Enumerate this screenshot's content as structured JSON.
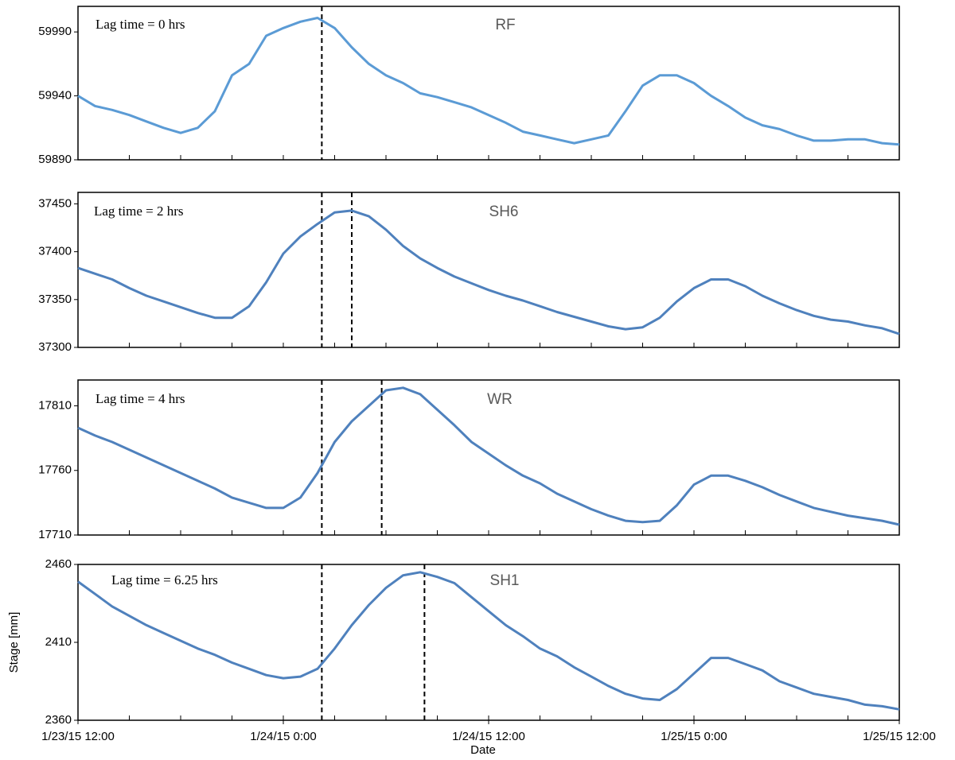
{
  "chart_data": [
    {
      "type": "line",
      "title": "RF",
      "annotation": "Lag time = 0 hrs",
      "color": "#5b9bd5",
      "ylim": [
        59890,
        60010
      ],
      "yticks": [
        59890,
        59940,
        59990
      ],
      "xlim": [
        "1/23/15 12:00",
        "1/25/15 12:00"
      ],
      "vlines": [
        "1/24/15 2:15"
      ],
      "x": [
        "1/23/15 12:00",
        "1/23/15 13:00",
        "1/23/15 14:00",
        "1/23/15 15:00",
        "1/23/15 16:00",
        "1/23/15 17:00",
        "1/23/15 18:00",
        "1/23/15 19:00",
        "1/23/15 20:00",
        "1/23/15 21:00",
        "1/23/15 22:00",
        "1/23/15 23:00",
        "1/24/15 0:00",
        "1/24/15 1:00",
        "1/24/15 2:00",
        "1/24/15 3:00",
        "1/24/15 4:00",
        "1/24/15 5:00",
        "1/24/15 6:00",
        "1/24/15 7:00",
        "1/24/15 8:00",
        "1/24/15 9:00",
        "1/24/15 10:00",
        "1/24/15 11:00",
        "1/24/15 12:00",
        "1/24/15 13:00",
        "1/24/15 14:00",
        "1/24/15 15:00",
        "1/24/15 16:00",
        "1/24/15 17:00",
        "1/24/15 18:00",
        "1/24/15 19:00",
        "1/24/15 20:00",
        "1/24/15 21:00",
        "1/24/15 22:00",
        "1/24/15 23:00",
        "1/25/15 0:00",
        "1/25/15 1:00",
        "1/25/15 2:00",
        "1/25/15 3:00",
        "1/25/15 4:00",
        "1/25/15 5:00",
        "1/25/15 6:00",
        "1/25/15 7:00",
        "1/25/15 8:00",
        "1/25/15 9:00",
        "1/25/15 10:00",
        "1/25/15 11:00",
        "1/25/15 12:00"
      ],
      "values": [
        59940,
        59932,
        59929,
        59925,
        59920,
        59915,
        59911,
        59915,
        59928,
        59956,
        59965,
        59987,
        59993,
        59998,
        60001,
        59993,
        59978,
        59965,
        59956,
        59950,
        59942,
        59939,
        59935,
        59931,
        59925,
        59919,
        59912,
        59909,
        59906,
        59903,
        59906,
        59909,
        59928,
        59948,
        59956,
        59956,
        59950,
        59940,
        59932,
        59923,
        59917,
        59914,
        59909,
        59905,
        59905,
        59906,
        59906,
        59903,
        59902
      ]
    },
    {
      "type": "line",
      "title": "SH6",
      "annotation": "Lag time = 2 hrs",
      "color": "#4f81bd",
      "ylim": [
        37300,
        37462
      ],
      "yticks": [
        37300,
        37350,
        37400,
        37450
      ],
      "xlim": [
        "1/23/15 12:00",
        "1/25/15 12:00"
      ],
      "vlines": [
        "1/24/15 2:15",
        "1/24/15 4:00"
      ],
      "x": [
        "1/23/15 12:00",
        "1/23/15 13:00",
        "1/23/15 14:00",
        "1/23/15 15:00",
        "1/23/15 16:00",
        "1/23/15 17:00",
        "1/23/15 18:00",
        "1/23/15 19:00",
        "1/23/15 20:00",
        "1/23/15 21:00",
        "1/23/15 22:00",
        "1/23/15 23:00",
        "1/24/15 0:00",
        "1/24/15 1:00",
        "1/24/15 2:00",
        "1/24/15 3:00",
        "1/24/15 4:00",
        "1/24/15 5:00",
        "1/24/15 6:00",
        "1/24/15 7:00",
        "1/24/15 8:00",
        "1/24/15 9:00",
        "1/24/15 10:00",
        "1/24/15 11:00",
        "1/24/15 12:00",
        "1/24/15 13:00",
        "1/24/15 14:00",
        "1/24/15 15:00",
        "1/24/15 16:00",
        "1/24/15 17:00",
        "1/24/15 18:00",
        "1/24/15 19:00",
        "1/24/15 20:00",
        "1/24/15 21:00",
        "1/24/15 22:00",
        "1/24/15 23:00",
        "1/25/15 0:00",
        "1/25/15 1:00",
        "1/25/15 2:00",
        "1/25/15 3:00",
        "1/25/15 4:00",
        "1/25/15 5:00",
        "1/25/15 6:00",
        "1/25/15 7:00",
        "1/25/15 8:00",
        "1/25/15 9:00",
        "1/25/15 10:00",
        "1/25/15 11:00",
        "1/25/15 12:00"
      ],
      "values": [
        37383,
        37377,
        37371,
        37362,
        37354,
        37348,
        37342,
        37336,
        37331,
        37331,
        37343,
        37368,
        37398,
        37416,
        37429,
        37441,
        37443,
        37437,
        37423,
        37406,
        37393,
        37383,
        37374,
        37367,
        37360,
        37354,
        37349,
        37343,
        37337,
        37332,
        37327,
        37322,
        37319,
        37321,
        37331,
        37348,
        37362,
        37371,
        37371,
        37364,
        37354,
        37346,
        37339,
        37333,
        37329,
        37327,
        37323,
        37320,
        37314
      ]
    },
    {
      "type": "line",
      "title": "WR",
      "annotation": "Lag time = 4 hrs",
      "color": "#4f81bd",
      "ylim": [
        17710,
        17830
      ],
      "yticks": [
        17710,
        17760,
        17810
      ],
      "xlim": [
        "1/23/15 12:00",
        "1/25/15 12:00"
      ],
      "vlines": [
        "1/24/15 2:15",
        "1/24/15 5:45"
      ],
      "x": [
        "1/23/15 12:00",
        "1/23/15 13:00",
        "1/23/15 14:00",
        "1/23/15 15:00",
        "1/23/15 16:00",
        "1/23/15 17:00",
        "1/23/15 18:00",
        "1/23/15 19:00",
        "1/23/15 20:00",
        "1/23/15 21:00",
        "1/23/15 22:00",
        "1/23/15 23:00",
        "1/24/15 0:00",
        "1/24/15 1:00",
        "1/24/15 2:00",
        "1/24/15 3:00",
        "1/24/15 4:00",
        "1/24/15 5:00",
        "1/24/15 6:00",
        "1/24/15 7:00",
        "1/24/15 8:00",
        "1/24/15 9:00",
        "1/24/15 10:00",
        "1/24/15 11:00",
        "1/24/15 12:00",
        "1/24/15 13:00",
        "1/24/15 14:00",
        "1/24/15 15:00",
        "1/24/15 16:00",
        "1/24/15 17:00",
        "1/24/15 18:00",
        "1/24/15 19:00",
        "1/24/15 20:00",
        "1/24/15 21:00",
        "1/24/15 22:00",
        "1/24/15 23:00",
        "1/25/15 0:00",
        "1/25/15 1:00",
        "1/25/15 2:00",
        "1/25/15 3:00",
        "1/25/15 4:00",
        "1/25/15 5:00",
        "1/25/15 6:00",
        "1/25/15 7:00",
        "1/25/15 8:00",
        "1/25/15 9:00",
        "1/25/15 10:00",
        "1/25/15 11:00",
        "1/25/15 12:00"
      ],
      "values": [
        17793,
        17787,
        17782,
        17776,
        17770,
        17764,
        17758,
        17752,
        17746,
        17739,
        17735,
        17731,
        17731,
        17739,
        17758,
        17782,
        17798,
        17810,
        17822,
        17824,
        17819,
        17807,
        17795,
        17782,
        17773,
        17764,
        17756,
        17750,
        17742,
        17736,
        17730,
        17725,
        17721,
        17720,
        17721,
        17733,
        17749,
        17756,
        17756,
        17752,
        17747,
        17741,
        17736,
        17731,
        17728,
        17725,
        17723,
        17721,
        17718
      ]
    },
    {
      "type": "line",
      "title": "SH1",
      "annotation": "Lag time = 6.25 hrs",
      "color": "#4f81bd",
      "ylabel": "Stage [mm]",
      "xlabel": "Date",
      "ylim": [
        2360,
        2460
      ],
      "yticks": [
        2360,
        2410,
        2460
      ],
      "xlim": [
        "1/23/15 12:00",
        "1/25/15 12:00"
      ],
      "xticks": [
        "1/23/15 12:00",
        "1/24/15 0:00",
        "1/24/15 12:00",
        "1/25/15 0:00",
        "1/25/15 12:00"
      ],
      "vlines": [
        "1/24/15 2:15",
        "1/24/15 8:15"
      ],
      "x": [
        "1/23/15 12:00",
        "1/23/15 13:00",
        "1/23/15 14:00",
        "1/23/15 15:00",
        "1/23/15 16:00",
        "1/23/15 17:00",
        "1/23/15 18:00",
        "1/23/15 19:00",
        "1/23/15 20:00",
        "1/23/15 21:00",
        "1/23/15 22:00",
        "1/23/15 23:00",
        "1/24/15 0:00",
        "1/24/15 1:00",
        "1/24/15 2:00",
        "1/24/15 3:00",
        "1/24/15 4:00",
        "1/24/15 5:00",
        "1/24/15 6:00",
        "1/24/15 7:00",
        "1/24/15 8:00",
        "1/24/15 9:00",
        "1/24/15 10:00",
        "1/24/15 11:00",
        "1/24/15 12:00",
        "1/24/15 13:00",
        "1/24/15 14:00",
        "1/24/15 15:00",
        "1/24/15 16:00",
        "1/24/15 17:00",
        "1/24/15 18:00",
        "1/24/15 19:00",
        "1/24/15 20:00",
        "1/24/15 21:00",
        "1/24/15 22:00",
        "1/24/15 23:00",
        "1/25/15 0:00",
        "1/25/15 1:00",
        "1/25/15 2:00",
        "1/25/15 3:00",
        "1/25/15 4:00",
        "1/25/15 5:00",
        "1/25/15 6:00",
        "1/25/15 7:00",
        "1/25/15 8:00",
        "1/25/15 9:00",
        "1/25/15 10:00",
        "1/25/15 11:00",
        "1/25/15 12:00"
      ],
      "values": [
        2449,
        2441,
        2433,
        2427,
        2421,
        2416,
        2411,
        2406,
        2402,
        2397,
        2393,
        2389,
        2387,
        2388,
        2393,
        2406,
        2421,
        2434,
        2445,
        2453,
        2455,
        2452,
        2448,
        2439,
        2430,
        2421,
        2414,
        2406,
        2401,
        2394,
        2388,
        2382,
        2377,
        2374,
        2373,
        2380,
        2390,
        2400,
        2400,
        2396,
        2392,
        2385,
        2381,
        2377,
        2375,
        2373,
        2370,
        2369,
        2367
      ]
    }
  ]
}
